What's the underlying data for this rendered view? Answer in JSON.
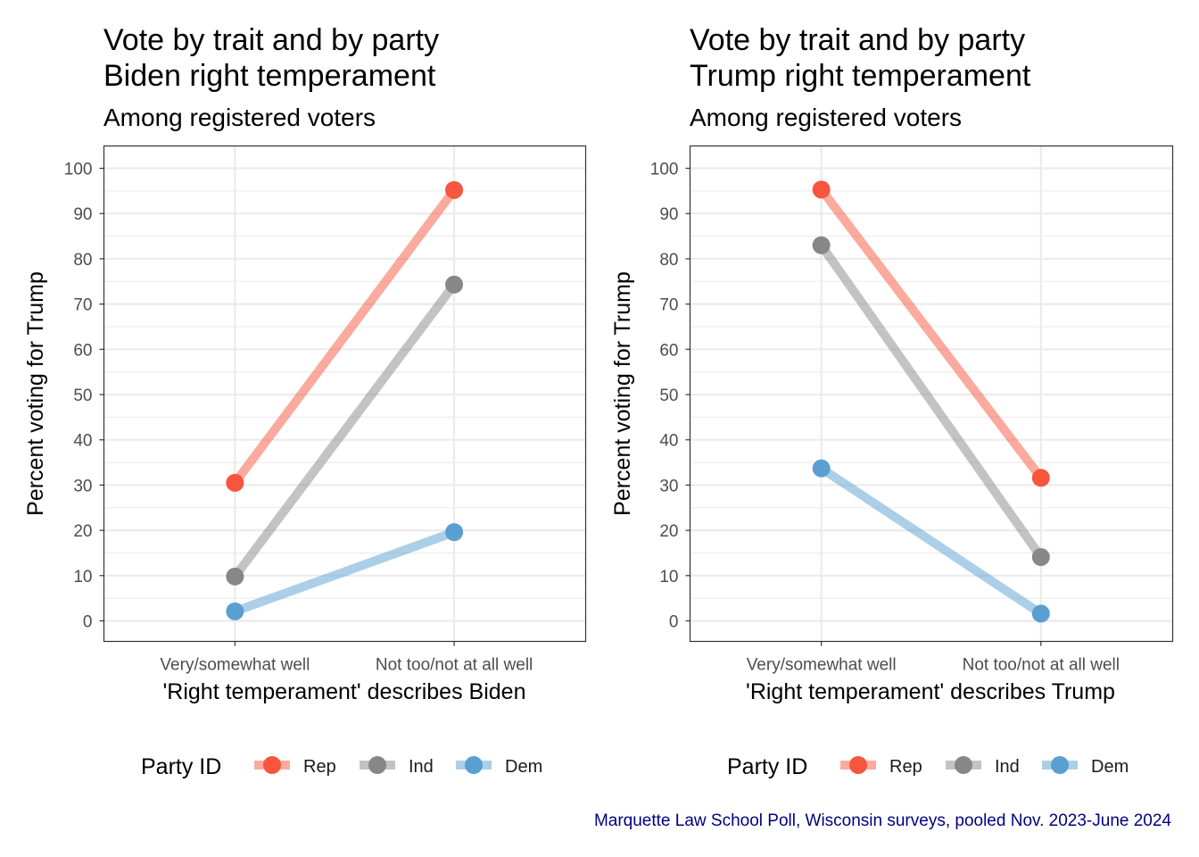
{
  "caption": "Marquette Law School Poll, Wisconsin surveys, pooled Nov. 2023-June 2024",
  "colors": {
    "Rep": "#f7553d",
    "Ind": "#878787",
    "Dem": "#5a9fd2",
    "caption": "#000080"
  },
  "legend": {
    "title": "Party ID",
    "position": "bottom"
  },
  "chart_data": [
    {
      "type": "line",
      "title": "Vote by trait and by party",
      "title2": "Biden right temperament",
      "subtitle": "Among registered voters",
      "xlabel": "'Right temperament' describes Biden",
      "ylabel": "Percent voting for Trump",
      "categories": [
        "Very/somewhat well",
        "Not too/not at all well"
      ],
      "ylim": [
        0,
        100
      ],
      "yticks": [
        "0",
        "10",
        "20",
        "30",
        "40",
        "50",
        "60",
        "70",
        "80",
        "90",
        "100"
      ],
      "grid": true,
      "series": [
        {
          "name": "Rep",
          "values": [
            30.5,
            95.2
          ]
        },
        {
          "name": "Ind",
          "values": [
            9.8,
            74.3
          ]
        },
        {
          "name": "Dem",
          "values": [
            2.1,
            19.6
          ]
        }
      ]
    },
    {
      "type": "line",
      "title": "Vote by trait and by party",
      "title2": "Trump right temperament",
      "subtitle": "Among registered voters",
      "xlabel": "'Right temperament' describes Trump",
      "ylabel": "Percent voting for Trump",
      "categories": [
        "Very/somewhat well",
        "Not too/not at all well"
      ],
      "ylim": [
        0,
        100
      ],
      "yticks": [
        "0",
        "10",
        "20",
        "30",
        "40",
        "50",
        "60",
        "70",
        "80",
        "90",
        "100"
      ],
      "grid": true,
      "series": [
        {
          "name": "Rep",
          "values": [
            95.3,
            31.6
          ]
        },
        {
          "name": "Ind",
          "values": [
            83.0,
            14.1
          ]
        },
        {
          "name": "Dem",
          "values": [
            33.7,
            1.6
          ]
        }
      ]
    }
  ]
}
